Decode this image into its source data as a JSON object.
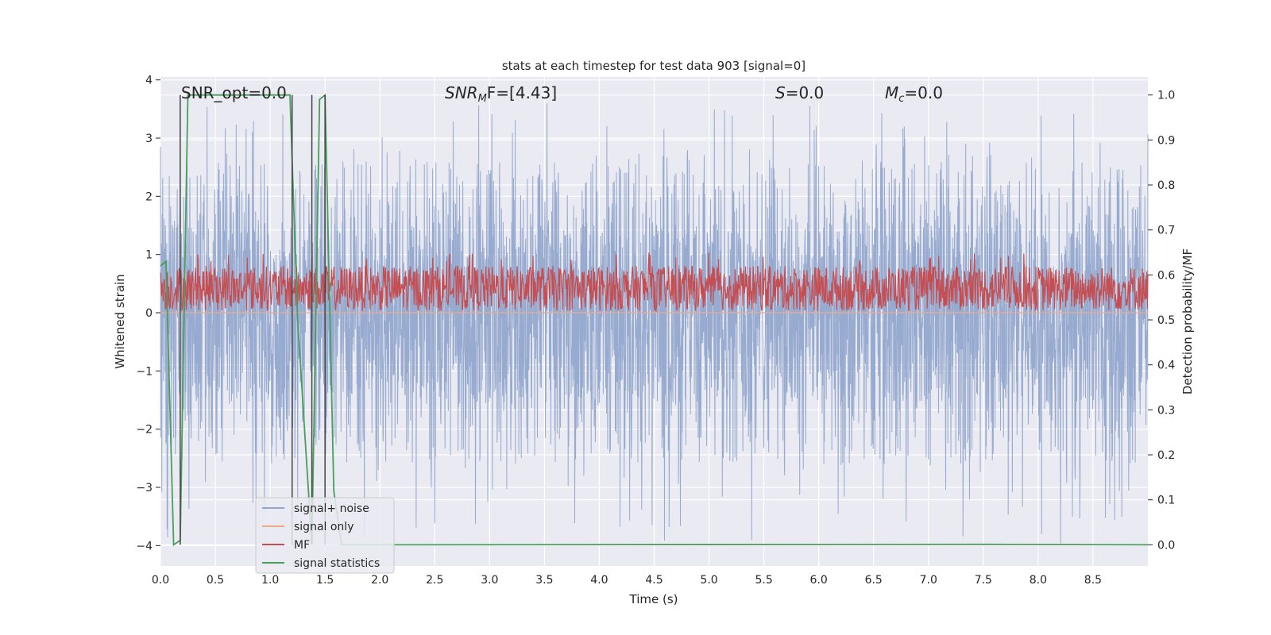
{
  "chart_data": {
    "type": "line",
    "title": "stats at each timestep for test data 903 [signal=0]",
    "xlabel": "Time (s)",
    "ylabel_left": "Whitened strain",
    "ylabel_right": "Detection probability/MF",
    "xlim": [
      0.0,
      9.0
    ],
    "ylim_left": [
      -4.35,
      4.05
    ],
    "ylim_right": [
      -0.047,
      1.04
    ],
    "xticks": [
      "0.0",
      "0.5",
      "1.0",
      "1.5",
      "2.0",
      "2.5",
      "3.0",
      "3.5",
      "4.0",
      "4.5",
      "5.0",
      "5.5",
      "6.0",
      "6.5",
      "7.0",
      "7.5",
      "8.0",
      "8.5"
    ],
    "yticks_left": [
      "4",
      "3",
      "2",
      "1",
      "0",
      "−1",
      "−2",
      "−3",
      "−4"
    ],
    "yticks_right": [
      "1.0",
      "0.9",
      "0.8",
      "0.7",
      "0.6",
      "0.5",
      "0.4",
      "0.3",
      "0.2",
      "0.1",
      "0.0"
    ],
    "grid": true,
    "legend_position": "lower-left",
    "annotations": {
      "snr_opt": "SNR_opt=0.0",
      "snr_mf_base": "SNR",
      "snr_mf_sub": "M",
      "snr_mf_rest": "F=[4.43]",
      "s_base": "S",
      "s_rest": "=0.0",
      "mc_base": "M",
      "mc_sub": "c",
      "mc_rest": "=0.0"
    },
    "series": [
      {
        "name": "signal+ noise",
        "color": "#92a6cc",
        "axis": "left",
        "x_range": [
          0.0,
          9.0
        ],
        "typical_range": [
          -2.6,
          2.6
        ],
        "extreme_range": [
          -4.0,
          3.6
        ]
      },
      {
        "name": "signal only",
        "color": "#eea98b",
        "axis": "left",
        "x": [
          0.0,
          9.0
        ],
        "y": [
          0.0,
          0.0
        ]
      },
      {
        "name": "MF",
        "color": "#c44e52",
        "axis": "right",
        "x_range": [
          0.0,
          9.0
        ],
        "typical_range": [
          0.52,
          0.62
        ],
        "extreme_range": [
          0.5,
          0.65
        ]
      },
      {
        "name": "signal statistics",
        "color": "#4a9e5c",
        "axis": "right",
        "x": [
          0.0,
          0.05,
          0.12,
          0.18,
          0.25,
          1.18,
          1.25,
          1.38,
          1.45,
          1.5,
          1.58,
          1.65,
          7.5,
          9.0
        ],
        "y": [
          0.62,
          0.63,
          0.0,
          0.01,
          1.0,
          1.0,
          0.5,
          0.0,
          0.99,
          1.0,
          0.12,
          0.0,
          0.001,
          0.0
        ]
      }
    ],
    "vertical_markers": {
      "color": "#444444",
      "x": [
        0.18,
        1.2,
        1.38,
        1.5
      ],
      "y_right": [
        0.0,
        1.0
      ]
    }
  }
}
